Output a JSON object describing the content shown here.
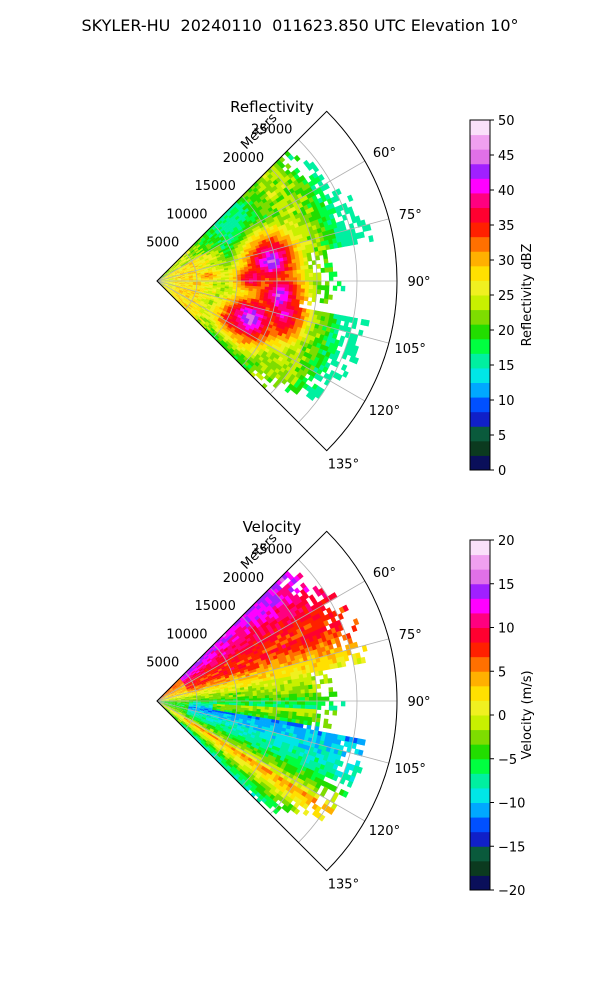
{
  "title": "SKYLER-HU  20240110  011623.850 UTC Elevation 10°",
  "chart_data": [
    {
      "type": "heatmap",
      "projection": "polar-sector",
      "title": "Reflectivity",
      "radial_axis_label": "Meters",
      "radial_ticks": [
        "5000",
        "10000",
        "15000",
        "20000",
        "25000"
      ],
      "radial_range": [
        0,
        30000
      ],
      "angle_range_deg": [
        45,
        135
      ],
      "angle_ticks": [
        "60°",
        "75°",
        "90°",
        "105°",
        "120°",
        "135°"
      ],
      "grid": true,
      "colorbar": {
        "label": "Reflectivity dBZ",
        "range": [
          0,
          50
        ],
        "ticks": [
          "0",
          "5",
          "10",
          "15",
          "20",
          "25",
          "30",
          "35",
          "40",
          "45",
          "50"
        ],
        "colors": [
          "#0a0f5a",
          "#0b3a1f",
          "#0a5a3c",
          "#1020c8",
          "#0050ff",
          "#00a8ff",
          "#00e6e6",
          "#00f0a0",
          "#00ff40",
          "#22dd00",
          "#7edc00",
          "#c8f000",
          "#f0f020",
          "#ffe000",
          "#ffb000",
          "#ff7000",
          "#ff2000",
          "#ff0030",
          "#ff0080",
          "#ff00ff",
          "#a020ff",
          "#e070e8",
          "#f0a0f0",
          "#fae0fa"
        ]
      }
    },
    {
      "type": "heatmap",
      "projection": "polar-sector",
      "title": "Velocity",
      "radial_axis_label": "Meters",
      "radial_ticks": [
        "5000",
        "10000",
        "15000",
        "20000",
        "25000"
      ],
      "radial_range": [
        0,
        30000
      ],
      "angle_range_deg": [
        45,
        135
      ],
      "angle_ticks": [
        "60°",
        "75°",
        "90°",
        "105°",
        "120°",
        "135°"
      ],
      "grid": true,
      "colorbar": {
        "label": "Velocity (m/s)",
        "range": [
          -20,
          20
        ],
        "ticks": [
          "−20",
          "−15",
          "−10",
          "−5",
          "0",
          "5",
          "10",
          "15",
          "20"
        ],
        "colors": [
          "#0a0f5a",
          "#0b3a1f",
          "#0a5a3c",
          "#1020c8",
          "#0050ff",
          "#00a8ff",
          "#00e6e6",
          "#00f0a0",
          "#00ff40",
          "#22dd00",
          "#7edc00",
          "#c8f000",
          "#f0f020",
          "#ffe000",
          "#ffb000",
          "#ff7000",
          "#ff2000",
          "#ff0030",
          "#ff0080",
          "#ff00ff",
          "#a020ff",
          "#e070e8",
          "#f0a0f0",
          "#fae0fa"
        ]
      }
    }
  ]
}
